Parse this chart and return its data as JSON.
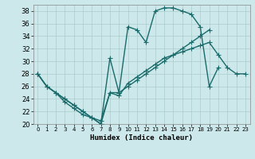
{
  "xlabel": "Humidex (Indice chaleur)",
  "bg_color": "#cce8ea",
  "grid_color": "#aacccc",
  "line_color": "#1a6b6b",
  "xlim": [
    -0.5,
    23.5
  ],
  "ylim": [
    20,
    39
  ],
  "yticks": [
    20,
    22,
    24,
    26,
    28,
    30,
    32,
    34,
    36,
    38
  ],
  "xticks": [
    0,
    1,
    2,
    3,
    4,
    5,
    6,
    7,
    8,
    9,
    10,
    11,
    12,
    13,
    14,
    15,
    16,
    17,
    18,
    19,
    20,
    21,
    22,
    23
  ],
  "line1_x": [
    0,
    1,
    2,
    3,
    4,
    5,
    6,
    7,
    8,
    9,
    10,
    11,
    12,
    13,
    14,
    15,
    16,
    17,
    18,
    19,
    20,
    21,
    22,
    23
  ],
  "line1_y": [
    28,
    26,
    25,
    24,
    23,
    22,
    21,
    20,
    30.5,
    25,
    35.5,
    35,
    33,
    38,
    38.5,
    38.5,
    38,
    37.5,
    35.5,
    26,
    29,
    null,
    null,
    null
  ],
  "line2_x": [
    0,
    1,
    2,
    3,
    4,
    5,
    6,
    7,
    8,
    9,
    10,
    11,
    12,
    13,
    14,
    15,
    16,
    17,
    18,
    19,
    20,
    21,
    22,
    23
  ],
  "line2_y": [
    28,
    26,
    25,
    24,
    23,
    22,
    21,
    20,
    25,
    25,
    26,
    27,
    28,
    29,
    30,
    31,
    32,
    33,
    34,
    35,
    null,
    null,
    null,
    null
  ],
  "line3_x": [
    0,
    1,
    2,
    3,
    4,
    5,
    6,
    7,
    8,
    9,
    10,
    11,
    12,
    13,
    14,
    15,
    16,
    17,
    18,
    19,
    20,
    21,
    22,
    23
  ],
  "line3_y": [
    28,
    26,
    25,
    23.5,
    22.5,
    21.5,
    21,
    20.5,
    25,
    24.5,
    26.5,
    27.5,
    28.5,
    29.5,
    30.5,
    31,
    31.5,
    32,
    32.5,
    33,
    31,
    29,
    28,
    28
  ]
}
